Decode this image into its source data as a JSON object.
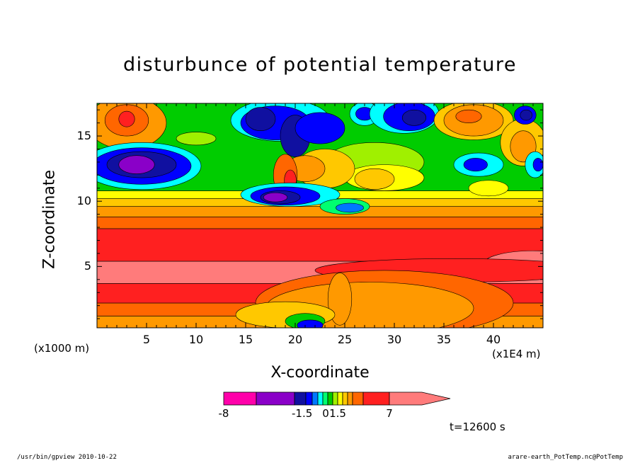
{
  "chart_data": {
    "type": "heatmap",
    "title": "disturbunce of potential temperature",
    "xlabel": "X-coordinate",
    "ylabel": "Z-coordinate",
    "x_unit": "(x1E4 m)",
    "y_unit": "(x1000 m)",
    "xlim": [
      0,
      45
    ],
    "ylim": [
      0.3,
      17.5
    ],
    "x_ticks": [
      "5",
      "10",
      "15",
      "20",
      "25",
      "30",
      "35",
      "40"
    ],
    "y_ticks": [
      "5",
      "10",
      "15"
    ],
    "time_label": "t=12600 s",
    "colorbar": {
      "labels": [
        "-8",
        "-1.5",
        "0",
        "1.5",
        "7"
      ],
      "levels": [
        -8,
        -5,
        -2,
        -1.5,
        -1,
        -0.5,
        0,
        0.5,
        1,
        1.5,
        2,
        3,
        5,
        7
      ],
      "colors": [
        "#ff00aa",
        "#8a00c8",
        "#1010a0",
        "#0000ff",
        "#0077ff",
        "#00ffff",
        "#00ff70",
        "#00cc00",
        "#a0f000",
        "#ffff00",
        "#ffc800",
        "#ff9900",
        "#ff6600",
        "#ff2020",
        "#ff7b7b"
      ]
    },
    "bands": [
      {
        "zmin": 0.3,
        "zmax": 1.2,
        "color": "#ff9900"
      },
      {
        "zmin": 1.2,
        "zmax": 2.2,
        "color": "#ff6600"
      },
      {
        "zmin": 2.2,
        "zmax": 3.7,
        "color": "#ff2020"
      },
      {
        "zmin": 3.7,
        "zmax": 5.4,
        "color": "#ff7b7b"
      },
      {
        "zmin": 5.4,
        "zmax": 7.9,
        "color": "#ff2020"
      },
      {
        "zmin": 7.9,
        "zmax": 8.8,
        "color": "#ff6600"
      },
      {
        "zmin": 8.8,
        "zmax": 9.6,
        "color": "#ff9900"
      },
      {
        "zmin": 9.6,
        "zmax": 10.2,
        "color": "#ffc800"
      },
      {
        "zmin": 10.2,
        "zmax": 10.8,
        "color": "#ffff00"
      },
      {
        "zmin": 10.8,
        "zmax": 17.5,
        "color": "#00cc00"
      }
    ],
    "blobs": [
      {
        "x": 3,
        "z": 16.0,
        "rx": 4,
        "rz": 2.0,
        "color": "#ff9900"
      },
      {
        "x": 3,
        "z": 16.2,
        "rx": 2.2,
        "rz": 1.2,
        "color": "#ff6600"
      },
      {
        "x": 3,
        "z": 16.3,
        "rx": 0.8,
        "rz": 0.6,
        "color": "#ff2020"
      },
      {
        "x": 4.5,
        "z": 12.7,
        "rx": 6,
        "rz": 1.8,
        "color": "#00ffff"
      },
      {
        "x": 4.5,
        "z": 12.7,
        "rx": 5,
        "rz": 1.4,
        "color": "#0000ff"
      },
      {
        "x": 4.5,
        "z": 12.8,
        "rx": 3.5,
        "rz": 1.0,
        "color": "#1010a0"
      },
      {
        "x": 4,
        "z": 12.8,
        "rx": 1.8,
        "rz": 0.7,
        "color": "#8a00c8"
      },
      {
        "x": 28,
        "z": 13.0,
        "rx": 5,
        "rz": 1.5,
        "color": "#a0f000"
      },
      {
        "x": 29,
        "z": 11.8,
        "rx": 4,
        "rz": 1.0,
        "color": "#ffff00"
      },
      {
        "x": 28,
        "z": 11.7,
        "rx": 2,
        "rz": 0.8,
        "color": "#ffc800"
      },
      {
        "x": 23,
        "z": 12.5,
        "rx": 3,
        "rz": 1.5,
        "color": "#ffc800"
      },
      {
        "x": 21,
        "z": 12.5,
        "rx": 2,
        "rz": 1.0,
        "color": "#ff9900"
      },
      {
        "x": 19,
        "z": 12.0,
        "rx": 1.2,
        "rz": 1.6,
        "color": "#ff6600"
      },
      {
        "x": 19.5,
        "z": 11.6,
        "rx": 0.6,
        "rz": 0.8,
        "color": "#ff2020"
      },
      {
        "x": 18.5,
        "z": 16.2,
        "rx": 5,
        "rz": 1.6,
        "color": "#00ffff"
      },
      {
        "x": 18,
        "z": 16.0,
        "rx": 3.5,
        "rz": 1.3,
        "color": "#0000ff"
      },
      {
        "x": 16.5,
        "z": 16.3,
        "rx": 1.5,
        "rz": 0.9,
        "color": "#1010a0"
      },
      {
        "x": 20,
        "z": 15.0,
        "rx": 1.5,
        "rz": 1.6,
        "color": "#1010a0"
      },
      {
        "x": 22.5,
        "z": 15.6,
        "rx": 2.5,
        "rz": 1.2,
        "color": "#0000ff"
      },
      {
        "x": 19.5,
        "z": 10.5,
        "rx": 5,
        "rz": 0.9,
        "color": "#00ffff"
      },
      {
        "x": 19,
        "z": 10.4,
        "rx": 3.5,
        "rz": 0.7,
        "color": "#0000ff"
      },
      {
        "x": 18.5,
        "z": 10.3,
        "rx": 2,
        "rz": 0.5,
        "color": "#1010a0"
      },
      {
        "x": 18,
        "z": 10.3,
        "rx": 1.2,
        "rz": 0.35,
        "color": "#8a00c8"
      },
      {
        "x": 25,
        "z": 9.6,
        "rx": 2.5,
        "rz": 0.6,
        "color": "#00ff70"
      },
      {
        "x": 25.5,
        "z": 9.5,
        "rx": 1.4,
        "rz": 0.35,
        "color": "#0077ff"
      },
      {
        "x": 27,
        "z": 16.7,
        "rx": 1.5,
        "rz": 0.9,
        "color": "#00ffff"
      },
      {
        "x": 27,
        "z": 16.7,
        "rx": 0.9,
        "rz": 0.5,
        "color": "#0000ff"
      },
      {
        "x": 31,
        "z": 16.7,
        "rx": 3.5,
        "rz": 1.5,
        "color": "#00ffff"
      },
      {
        "x": 31.5,
        "z": 16.5,
        "rx": 2.6,
        "rz": 1.1,
        "color": "#0000ff"
      },
      {
        "x": 32,
        "z": 16.4,
        "rx": 1.2,
        "rz": 0.6,
        "color": "#1010a0"
      },
      {
        "x": 38,
        "z": 16.2,
        "rx": 4,
        "rz": 1.5,
        "color": "#ffc800"
      },
      {
        "x": 38,
        "z": 16.2,
        "rx": 3,
        "rz": 1.2,
        "color": "#ff9900"
      },
      {
        "x": 37.5,
        "z": 16.5,
        "rx": 1.3,
        "rz": 0.5,
        "color": "#ff6600"
      },
      {
        "x": 43,
        "z": 14.5,
        "rx": 2.3,
        "rz": 1.8,
        "color": "#ffc800"
      },
      {
        "x": 43,
        "z": 14.2,
        "rx": 1.3,
        "rz": 1.2,
        "color": "#ff9900"
      },
      {
        "x": 43.2,
        "z": 16.6,
        "rx": 1.1,
        "rz": 0.7,
        "color": "#0000ff"
      },
      {
        "x": 43.3,
        "z": 16.6,
        "rx": 0.6,
        "rz": 0.4,
        "color": "#1010a0"
      },
      {
        "x": 38.5,
        "z": 12.8,
        "rx": 2.5,
        "rz": 0.9,
        "color": "#00ffff"
      },
      {
        "x": 38.2,
        "z": 12.8,
        "rx": 1.2,
        "rz": 0.5,
        "color": "#0000ff"
      },
      {
        "x": 44.2,
        "z": 12.8,
        "rx": 1.0,
        "rz": 1.0,
        "color": "#00ffff"
      },
      {
        "x": 44.5,
        "z": 12.8,
        "rx": 0.5,
        "rz": 0.5,
        "color": "#0000ff"
      },
      {
        "x": 10,
        "z": 14.8,
        "rx": 2,
        "rz": 0.5,
        "color": "#a0f000"
      },
      {
        "x": 39.5,
        "z": 11.0,
        "rx": 2,
        "rz": 0.6,
        "color": "#ffff00"
      },
      {
        "x": 44,
        "z": 5.2,
        "rx": 5,
        "rz": 1.0,
        "color": "#ff7b7b"
      },
      {
        "x": 36,
        "z": 4.7,
        "rx": 14,
        "rz": 0.9,
        "color": "#ff2020"
      },
      {
        "x": 29,
        "z": 2.2,
        "rx": 13,
        "rz": 2.5,
        "color": "#ff6600"
      },
      {
        "x": 27.5,
        "z": 1.8,
        "rx": 10.5,
        "rz": 2.0,
        "color": "#ff9900"
      },
      {
        "x": 24.5,
        "z": 2.5,
        "rx": 1.2,
        "rz": 2.0,
        "color": "#ff9900"
      },
      {
        "x": 19,
        "z": 1.3,
        "rx": 5,
        "rz": 1.0,
        "color": "#ffc800"
      },
      {
        "x": 21,
        "z": 0.8,
        "rx": 2,
        "rz": 0.6,
        "color": "#00cc00"
      },
      {
        "x": 21.5,
        "z": 0.5,
        "rx": 1.3,
        "rz": 0.4,
        "color": "#0000ff"
      }
    ]
  },
  "footer_left": "/usr/bin/gpview  2010-10-22",
  "footer_right": "arare-earth_PotTemp.nc@PotTemp"
}
